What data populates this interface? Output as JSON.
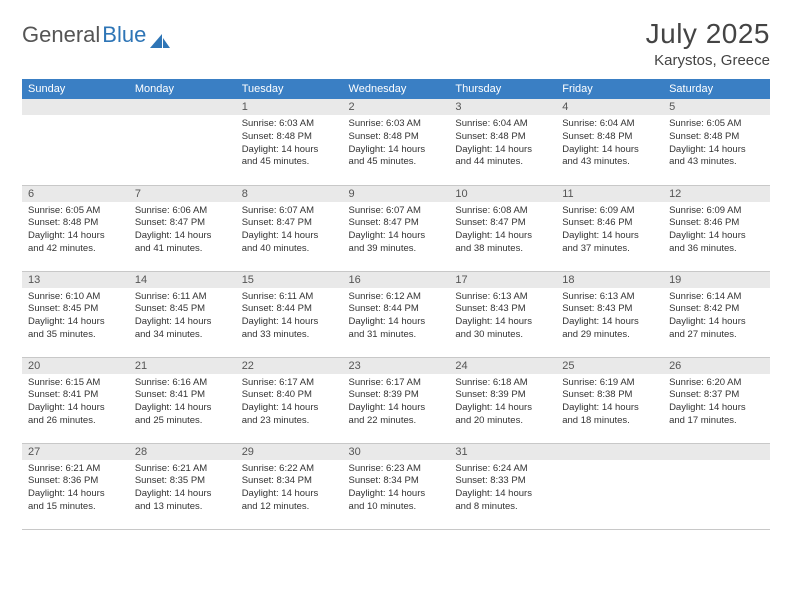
{
  "brand": {
    "part1": "General",
    "part2": "Blue"
  },
  "title": "July 2025",
  "location": "Karystos, Greece",
  "colors": {
    "header_bg": "#3a7fc4",
    "daynum_bg": "#e9e9e9",
    "brand_blue": "#2e75b6"
  },
  "weekdays": [
    "Sunday",
    "Monday",
    "Tuesday",
    "Wednesday",
    "Thursday",
    "Friday",
    "Saturday"
  ],
  "weeks": [
    [
      {
        "n": "",
        "lines": []
      },
      {
        "n": "",
        "lines": []
      },
      {
        "n": "1",
        "lines": [
          "Sunrise: 6:03 AM",
          "Sunset: 8:48 PM",
          "Daylight: 14 hours",
          "and 45 minutes."
        ]
      },
      {
        "n": "2",
        "lines": [
          "Sunrise: 6:03 AM",
          "Sunset: 8:48 PM",
          "Daylight: 14 hours",
          "and 45 minutes."
        ]
      },
      {
        "n": "3",
        "lines": [
          "Sunrise: 6:04 AM",
          "Sunset: 8:48 PM",
          "Daylight: 14 hours",
          "and 44 minutes."
        ]
      },
      {
        "n": "4",
        "lines": [
          "Sunrise: 6:04 AM",
          "Sunset: 8:48 PM",
          "Daylight: 14 hours",
          "and 43 minutes."
        ]
      },
      {
        "n": "5",
        "lines": [
          "Sunrise: 6:05 AM",
          "Sunset: 8:48 PM",
          "Daylight: 14 hours",
          "and 43 minutes."
        ]
      }
    ],
    [
      {
        "n": "6",
        "lines": [
          "Sunrise: 6:05 AM",
          "Sunset: 8:48 PM",
          "Daylight: 14 hours",
          "and 42 minutes."
        ]
      },
      {
        "n": "7",
        "lines": [
          "Sunrise: 6:06 AM",
          "Sunset: 8:47 PM",
          "Daylight: 14 hours",
          "and 41 minutes."
        ]
      },
      {
        "n": "8",
        "lines": [
          "Sunrise: 6:07 AM",
          "Sunset: 8:47 PM",
          "Daylight: 14 hours",
          "and 40 minutes."
        ]
      },
      {
        "n": "9",
        "lines": [
          "Sunrise: 6:07 AM",
          "Sunset: 8:47 PM",
          "Daylight: 14 hours",
          "and 39 minutes."
        ]
      },
      {
        "n": "10",
        "lines": [
          "Sunrise: 6:08 AM",
          "Sunset: 8:47 PM",
          "Daylight: 14 hours",
          "and 38 minutes."
        ]
      },
      {
        "n": "11",
        "lines": [
          "Sunrise: 6:09 AM",
          "Sunset: 8:46 PM",
          "Daylight: 14 hours",
          "and 37 minutes."
        ]
      },
      {
        "n": "12",
        "lines": [
          "Sunrise: 6:09 AM",
          "Sunset: 8:46 PM",
          "Daylight: 14 hours",
          "and 36 minutes."
        ]
      }
    ],
    [
      {
        "n": "13",
        "lines": [
          "Sunrise: 6:10 AM",
          "Sunset: 8:45 PM",
          "Daylight: 14 hours",
          "and 35 minutes."
        ]
      },
      {
        "n": "14",
        "lines": [
          "Sunrise: 6:11 AM",
          "Sunset: 8:45 PM",
          "Daylight: 14 hours",
          "and 34 minutes."
        ]
      },
      {
        "n": "15",
        "lines": [
          "Sunrise: 6:11 AM",
          "Sunset: 8:44 PM",
          "Daylight: 14 hours",
          "and 33 minutes."
        ]
      },
      {
        "n": "16",
        "lines": [
          "Sunrise: 6:12 AM",
          "Sunset: 8:44 PM",
          "Daylight: 14 hours",
          "and 31 minutes."
        ]
      },
      {
        "n": "17",
        "lines": [
          "Sunrise: 6:13 AM",
          "Sunset: 8:43 PM",
          "Daylight: 14 hours",
          "and 30 minutes."
        ]
      },
      {
        "n": "18",
        "lines": [
          "Sunrise: 6:13 AM",
          "Sunset: 8:43 PM",
          "Daylight: 14 hours",
          "and 29 minutes."
        ]
      },
      {
        "n": "19",
        "lines": [
          "Sunrise: 6:14 AM",
          "Sunset: 8:42 PM",
          "Daylight: 14 hours",
          "and 27 minutes."
        ]
      }
    ],
    [
      {
        "n": "20",
        "lines": [
          "Sunrise: 6:15 AM",
          "Sunset: 8:41 PM",
          "Daylight: 14 hours",
          "and 26 minutes."
        ]
      },
      {
        "n": "21",
        "lines": [
          "Sunrise: 6:16 AM",
          "Sunset: 8:41 PM",
          "Daylight: 14 hours",
          "and 25 minutes."
        ]
      },
      {
        "n": "22",
        "lines": [
          "Sunrise: 6:17 AM",
          "Sunset: 8:40 PM",
          "Daylight: 14 hours",
          "and 23 minutes."
        ]
      },
      {
        "n": "23",
        "lines": [
          "Sunrise: 6:17 AM",
          "Sunset: 8:39 PM",
          "Daylight: 14 hours",
          "and 22 minutes."
        ]
      },
      {
        "n": "24",
        "lines": [
          "Sunrise: 6:18 AM",
          "Sunset: 8:39 PM",
          "Daylight: 14 hours",
          "and 20 minutes."
        ]
      },
      {
        "n": "25",
        "lines": [
          "Sunrise: 6:19 AM",
          "Sunset: 8:38 PM",
          "Daylight: 14 hours",
          "and 18 minutes."
        ]
      },
      {
        "n": "26",
        "lines": [
          "Sunrise: 6:20 AM",
          "Sunset: 8:37 PM",
          "Daylight: 14 hours",
          "and 17 minutes."
        ]
      }
    ],
    [
      {
        "n": "27",
        "lines": [
          "Sunrise: 6:21 AM",
          "Sunset: 8:36 PM",
          "Daylight: 14 hours",
          "and 15 minutes."
        ]
      },
      {
        "n": "28",
        "lines": [
          "Sunrise: 6:21 AM",
          "Sunset: 8:35 PM",
          "Daylight: 14 hours",
          "and 13 minutes."
        ]
      },
      {
        "n": "29",
        "lines": [
          "Sunrise: 6:22 AM",
          "Sunset: 8:34 PM",
          "Daylight: 14 hours",
          "and 12 minutes."
        ]
      },
      {
        "n": "30",
        "lines": [
          "Sunrise: 6:23 AM",
          "Sunset: 8:34 PM",
          "Daylight: 14 hours",
          "and 10 minutes."
        ]
      },
      {
        "n": "31",
        "lines": [
          "Sunrise: 6:24 AM",
          "Sunset: 8:33 PM",
          "Daylight: 14 hours",
          "and 8 minutes."
        ]
      },
      {
        "n": "",
        "lines": []
      },
      {
        "n": "",
        "lines": []
      }
    ]
  ]
}
